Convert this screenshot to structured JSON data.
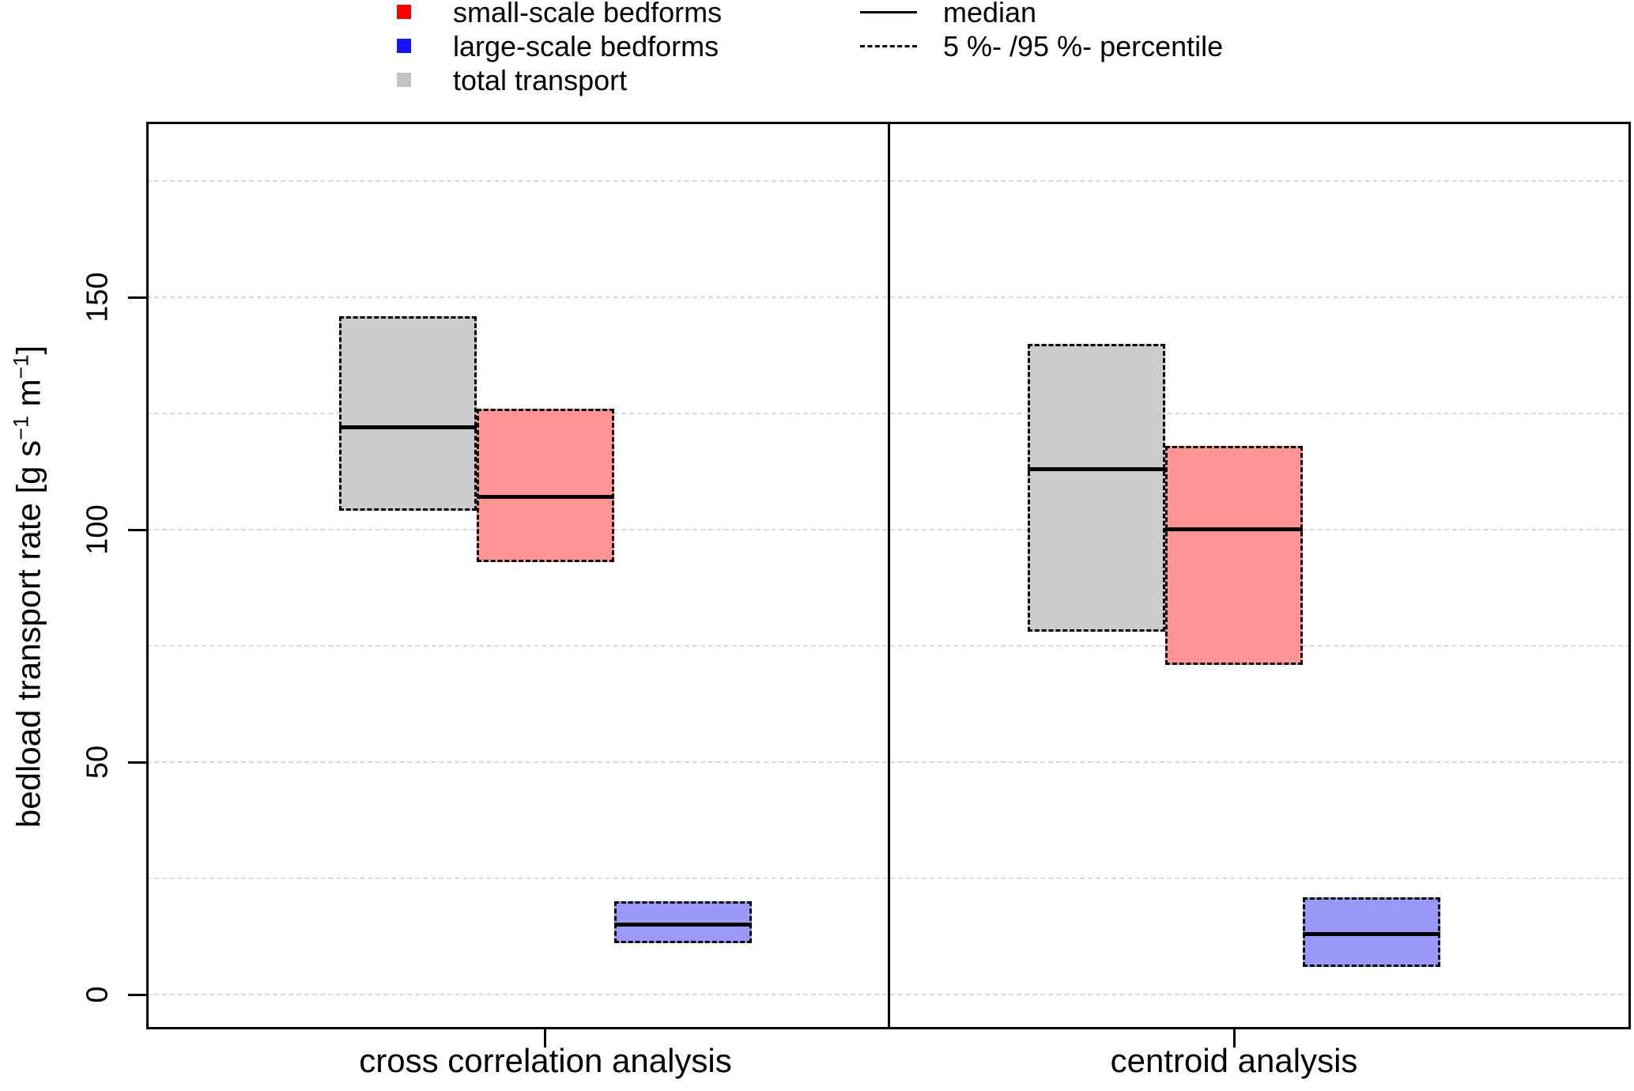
{
  "legend": {
    "items": [
      {
        "swatch": "square",
        "color": "#FF0000",
        "label": "small-scale bedforms"
      },
      {
        "swatch": "square",
        "color": "#1414FF",
        "label": "large-scale bedforms"
      },
      {
        "swatch": "square",
        "color": "#C2C2C2",
        "label": "total transport"
      },
      {
        "swatch": "solid-line",
        "color": "#000000",
        "label": "median"
      },
      {
        "swatch": "dashed-line",
        "color": "#000000",
        "label": "5 %- /95 %- percentile"
      }
    ]
  },
  "chart_data": {
    "type": "boxplot",
    "title": "",
    "xlabel": "",
    "ylabel": "bedload transport rate [g s⁻¹ m⁻¹]",
    "ylabel_parts": {
      "p1": "bedload transport rate [g s",
      "s1": "−1",
      "p2": " m",
      "s2": "−1",
      "p3": "]"
    },
    "ylim": [
      -7.5,
      188
    ],
    "yticks": [
      0,
      50,
      100,
      150
    ],
    "gridlines": [
      0,
      25,
      50,
      75,
      100,
      125,
      150,
      175
    ],
    "grid_style": "dashed horizontal lightgray",
    "legend_position": "top",
    "groups": [
      "cross correlation analysis",
      "centroid analysis"
    ],
    "series": [
      {
        "name": "total transport",
        "fill": "#CCCCCC",
        "values": [
          {
            "p5": 104,
            "median": 122,
            "p95": 146
          },
          {
            "p5": 78,
            "median": 113,
            "p95": 140
          }
        ]
      },
      {
        "name": "small-scale bedforms",
        "fill": "#FF9494",
        "values": [
          {
            "p5": 93,
            "median": 107,
            "p95": 126
          },
          {
            "p5": 71,
            "median": 100,
            "p95": 118
          }
        ]
      },
      {
        "name": "large-scale bedforms",
        "fill": "#9999FA",
        "values": [
          {
            "p5": 11,
            "median": 15,
            "p95": 20
          },
          {
            "p5": 6,
            "median": 13,
            "p95": 21
          }
        ]
      }
    ],
    "box_meaning": "box spans the 5%-/95%-percentile range; solid horizontal line is the median"
  }
}
